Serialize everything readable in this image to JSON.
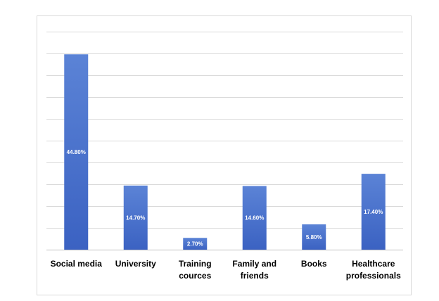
{
  "chart_data": {
    "type": "bar",
    "categories": [
      "Social media",
      "University",
      "Training cources",
      "Family and friends",
      "Books",
      "Healthcare professionals"
    ],
    "category_lines": [
      [
        "Social media"
      ],
      [
        "University"
      ],
      [
        "Training",
        "cources"
      ],
      [
        "Family and",
        "friends"
      ],
      [
        "Books"
      ],
      [
        "Healthcare",
        "professionals"
      ]
    ],
    "values": [
      44.8,
      14.7,
      2.7,
      14.6,
      5.8,
      17.4
    ],
    "data_labels": [
      "44.80%",
      "14.70%",
      "2.70%",
      "14.60%",
      "5.80%",
      "17.40%"
    ],
    "ylim": [
      0,
      50
    ],
    "y_grid_step": 5,
    "grid": true,
    "bar_color_top": "#5b83d6",
    "bar_color_bottom": "#3b62c2"
  }
}
